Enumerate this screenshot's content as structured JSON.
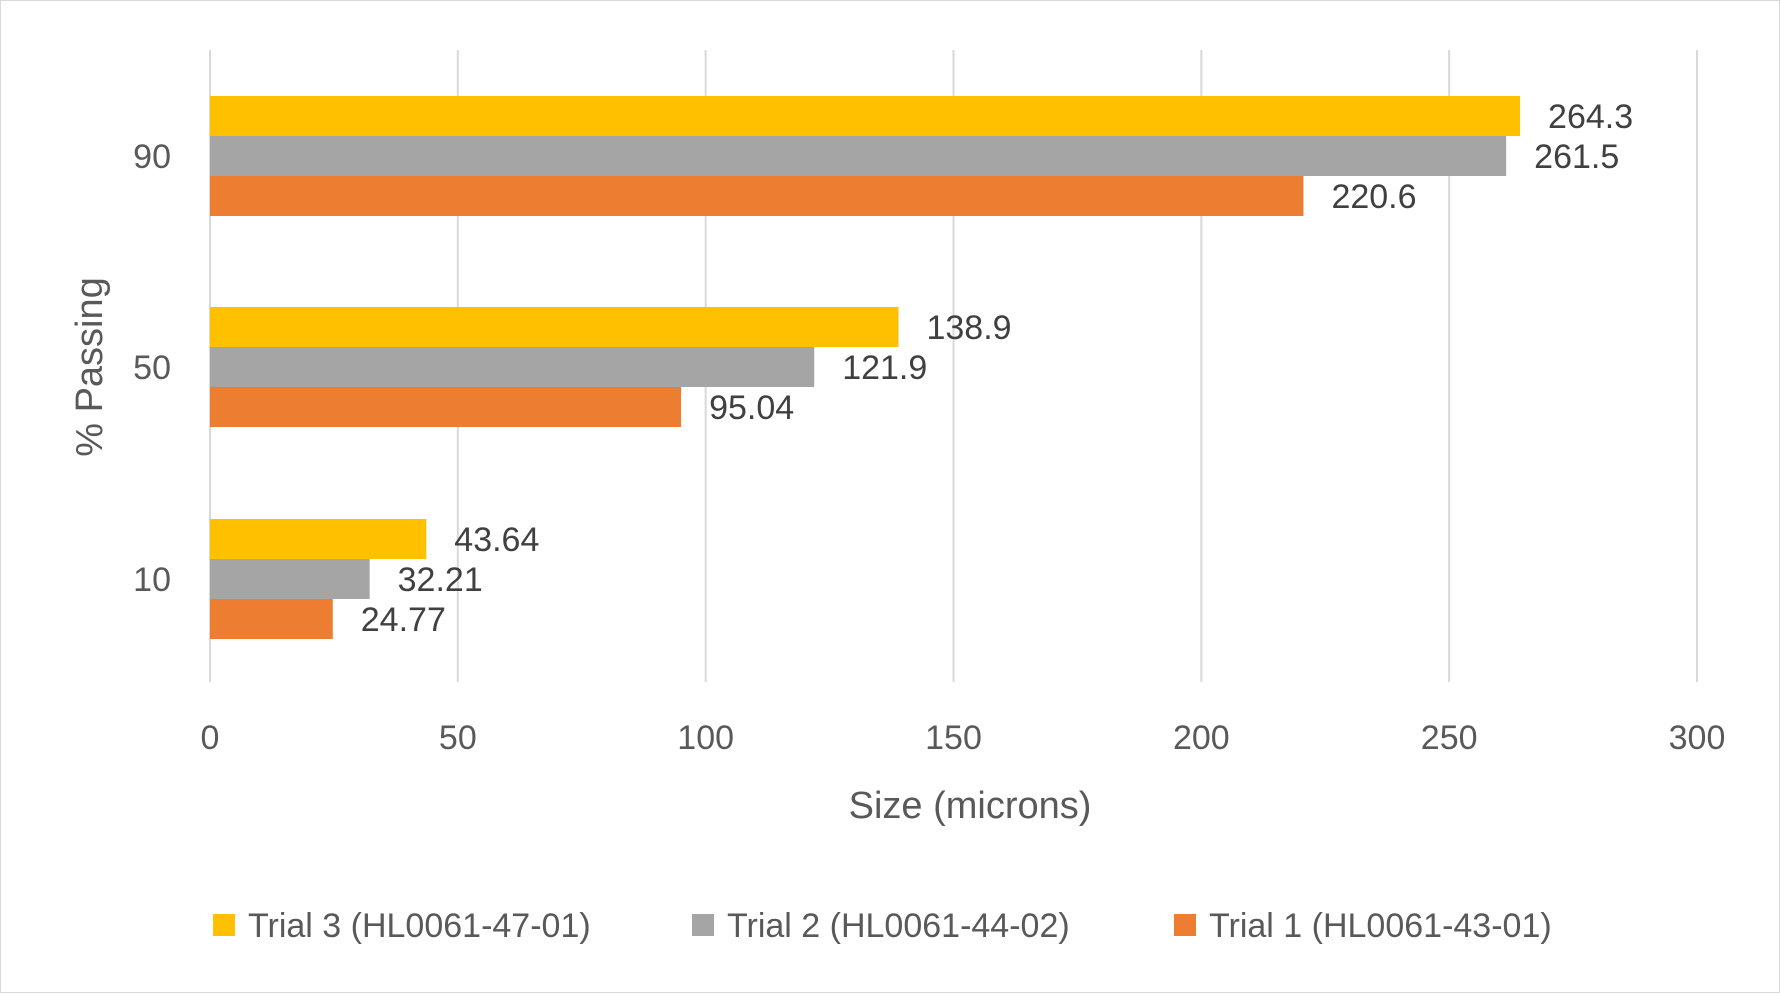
{
  "chart_data": {
    "type": "bar",
    "orientation": "horizontal",
    "categories": [
      "10",
      "50",
      "90"
    ],
    "series": [
      {
        "name": "Trial 3 (HL0061-47-01)",
        "values": [
          43.64,
          138.9,
          264.3
        ],
        "labels": [
          "43.64",
          "138.9",
          "264.3"
        ],
        "color": "#FFC000"
      },
      {
        "name": "Trial 2 (HL0061-44-02)",
        "values": [
          32.21,
          121.9,
          261.5
        ],
        "labels": [
          "32.21",
          "121.9",
          "261.5"
        ],
        "color": "#A5A5A5"
      },
      {
        "name": "Trial 1 (HL0061-43-01)",
        "values": [
          24.77,
          95.04,
          220.6
        ],
        "labels": [
          "24.77",
          "95.04",
          "220.6"
        ],
        "color": "#ED7D31"
      }
    ],
    "xlabel": "Size (microns)",
    "ylabel": "% Passing",
    "xlim": [
      0,
      300
    ],
    "xticks": [
      "0",
      "50",
      "100",
      "150",
      "200",
      "250",
      "300"
    ],
    "grid": true,
    "legend_position": "bottom"
  }
}
